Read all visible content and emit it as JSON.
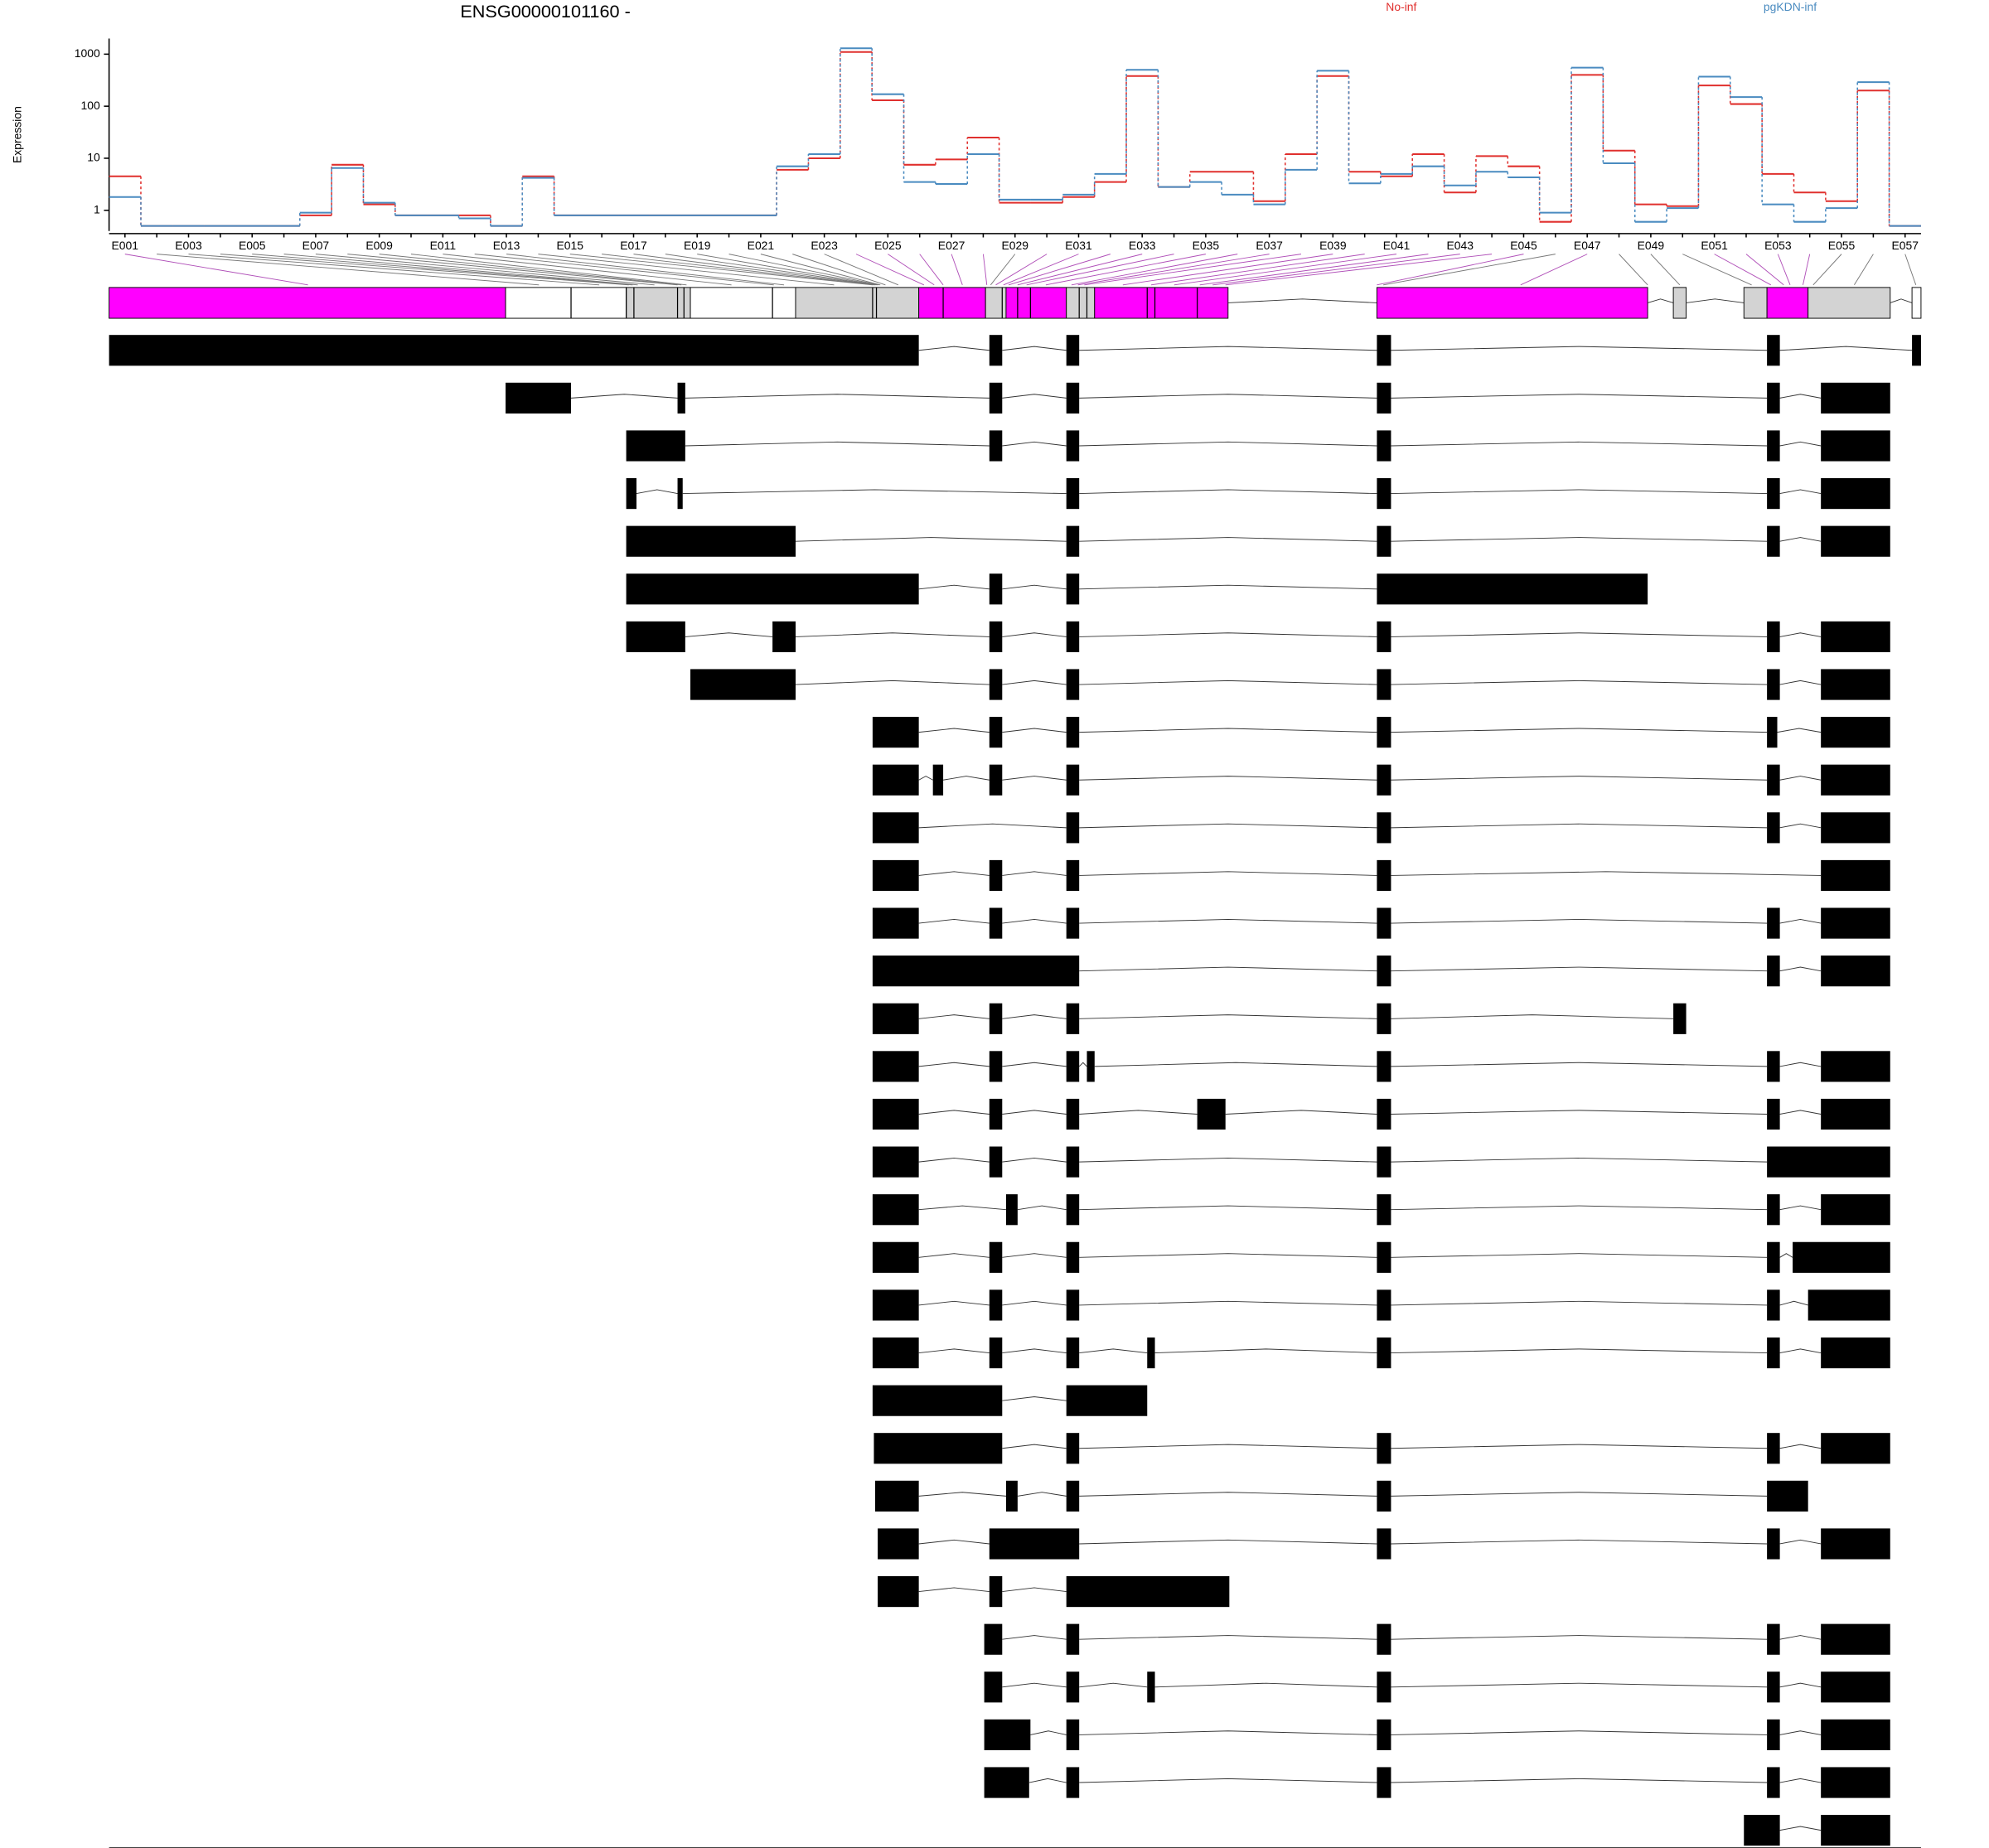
{
  "chart_data": [
    {
      "type": "line",
      "title": "ENSG00000101160 -",
      "y_label": "Expression",
      "log_scale": true,
      "categories": [
        "E001",
        null,
        "E003",
        null,
        "E005",
        null,
        "E007",
        null,
        "E009",
        null,
        "E011",
        null,
        "E013",
        null,
        "E015",
        null,
        "E017",
        null,
        "E019",
        null,
        "E021",
        null,
        "E023",
        null,
        "E025",
        null,
        "E027",
        null,
        "E029",
        null,
        "E031",
        null,
        "E033",
        null,
        "E035",
        null,
        "E037",
        null,
        "E039",
        null,
        "E041",
        null,
        "E043",
        null,
        "E045",
        null,
        "E047",
        null,
        "E049",
        null,
        "E051",
        null,
        "E053",
        null,
        "E055",
        null,
        "E057"
      ],
      "series": [
        {
          "name": "No-inf",
          "color": "#e0302e",
          "values": [
            4.5,
            0.5,
            0.5,
            0.5,
            0.5,
            0.5,
            0.8,
            7.5,
            1.3,
            0.8,
            0.8,
            0.8,
            0.5,
            4.5,
            0.8,
            0.8,
            0.8,
            0.8,
            0.8,
            0.8,
            0.8,
            6,
            10,
            1100,
            130,
            7.5,
            9.5,
            25,
            1.4,
            1.4,
            1.8,
            3.5,
            380,
            2.8,
            5.5,
            5.5,
            1.5,
            12,
            380,
            5.5,
            4.5,
            12,
            2.2,
            11,
            7,
            0.6,
            400,
            14,
            1.3,
            1.2,
            250,
            110,
            5,
            2.2,
            1.5,
            200,
            0.5
          ]
        },
        {
          "name": "pgKDN-inf",
          "color": "#4a8bc0",
          "values": [
            1.8,
            0.5,
            0.5,
            0.5,
            0.5,
            0.5,
            0.9,
            6.5,
            1.4,
            0.8,
            0.8,
            0.7,
            0.5,
            4.2,
            0.8,
            0.8,
            0.8,
            0.8,
            0.8,
            0.8,
            0.8,
            7,
            12,
            1300,
            170,
            3.5,
            3.2,
            12,
            1.6,
            1.6,
            2,
            5,
            500,
            2.8,
            3.5,
            2,
            1.3,
            6,
            480,
            3.3,
            5,
            7,
            3,
            5.5,
            4.3,
            0.9,
            550,
            8,
            0.6,
            1.1,
            370,
            150,
            1.3,
            0.6,
            1.1,
            290,
            0.5
          ]
        }
      ],
      "ylim": [
        0.4,
        2000
      ],
      "yticks": [
        1,
        10,
        100,
        1000
      ]
    },
    {
      "type": "gene_model",
      "xlim": [
        58985686,
        59008238
      ],
      "xticks": [
        58985686,
        58988192,
        58990698,
        58993203,
        58995709,
        58998215,
        59000721,
        59003226,
        59005732,
        59008238
      ]
    }
  ]
}
